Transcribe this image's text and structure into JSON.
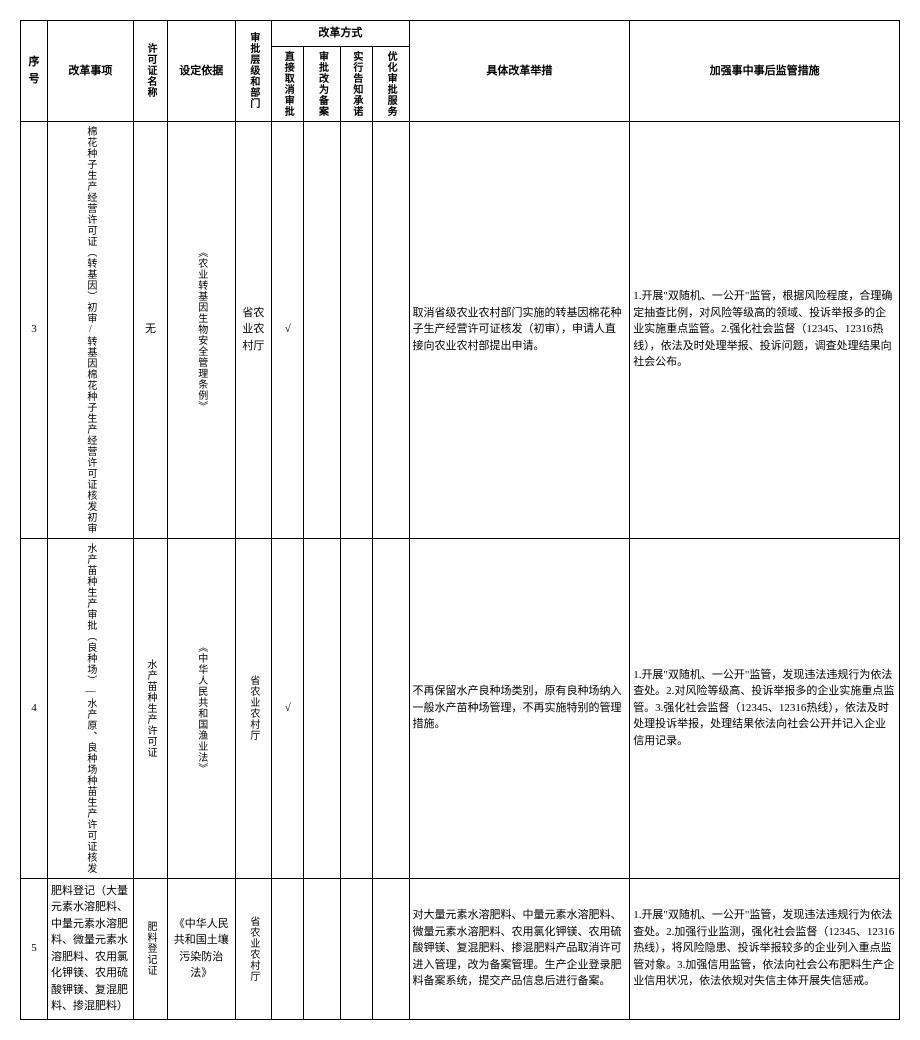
{
  "headers": {
    "seq": "序号",
    "item": "改革事项",
    "cert": "许可证名称",
    "basis": "设定依据",
    "level": "审批层级和部门",
    "reform_group": "改革方式",
    "m1": "直接取消审批",
    "m2": "审批改为备案",
    "m3": "实行告知承诺",
    "m4": "优化审批服务",
    "measure": "具体改革举措",
    "supervise": "加强事中事后监管措施"
  },
  "rows": [
    {
      "seq": "3",
      "item": "棉花种子生产经营许可证（转基因）初审/转基因棉花种子生产经营许可证核发初审",
      "cert": "无",
      "basis": "《农业转基因生物安全管理条例》",
      "level": "省农业农村厅",
      "m1": "√",
      "m2": "",
      "m3": "",
      "m4": "",
      "measure": "取消省级农业农村部门实施的转基因棉花种子生产经营许可证核发（初审），申请人直接向农业农村部提出申请。",
      "supervise": "1.开展\"双随机、一公开\"监管，根据风险程度，合理确定抽查比例，对风险等级高的领域、投诉举报多的企业实施重点监管。2.强化社会监督（12345、12316热线），依法及时处理举报、投诉问题，调查处理结果向社会公布。"
    },
    {
      "seq": "4",
      "item": "水产苗种生产审批（良种场）—水产原、良种场种苗生产许可证核发",
      "cert": "水产苗种生产许可证",
      "basis": "《中华人民共和国渔业法》",
      "level": "省农业农村厅",
      "m1": "√",
      "m2": "",
      "m3": "",
      "m4": "",
      "measure": "不再保留水产良种场类别，原有良种场纳入一般水产苗种场管理，不再实施特别的管理措施。",
      "supervise": "1.开展\"双随机、一公开\"监管，发现违法违规行为依法查处。2.对风险等级高、投诉举报多的企业实施重点监管。3.强化社会监督（12345、12316热线），依法及时处理投诉举报，处理结果依法向社会公开并记入企业信用记录。"
    },
    {
      "seq": "5",
      "item": "肥料登记（大量元素水溶肥料、中量元素水溶肥料、微量元素水溶肥料、农用氯化钾镁、农用硫酸钾镁、复混肥料、掺混肥料）",
      "cert": "肥料登记证",
      "basis": "《中华人民共和国土壤污染防治法》",
      "level": "省农业农村厅",
      "m1": "",
      "m2": "",
      "m3": "",
      "m4": "",
      "measure": "对大量元素水溶肥料、中量元素水溶肥料、微量元素水溶肥料、农用氯化钾镁、农用硫酸钾镁、复混肥料、掺混肥料产品取消许可进入管理，改为备案管理。生产企业登录肥料备案系统，提交产品信息后进行备案。",
      "supervise": "1.开展\"双随机、一公开\"监管，发现违法违规行为依法查处。2.加强行业监测，强化社会监督（12345、12316热线），将风险隐患、投诉举报较多的企业列入重点监管对象。3.加强信用监管，依法向社会公布肥料生产企业信用状况，依法依规对失信主体开展失信惩戒。"
    }
  ],
  "colors": {
    "border": "#000000",
    "bg": "#ffffff"
  }
}
